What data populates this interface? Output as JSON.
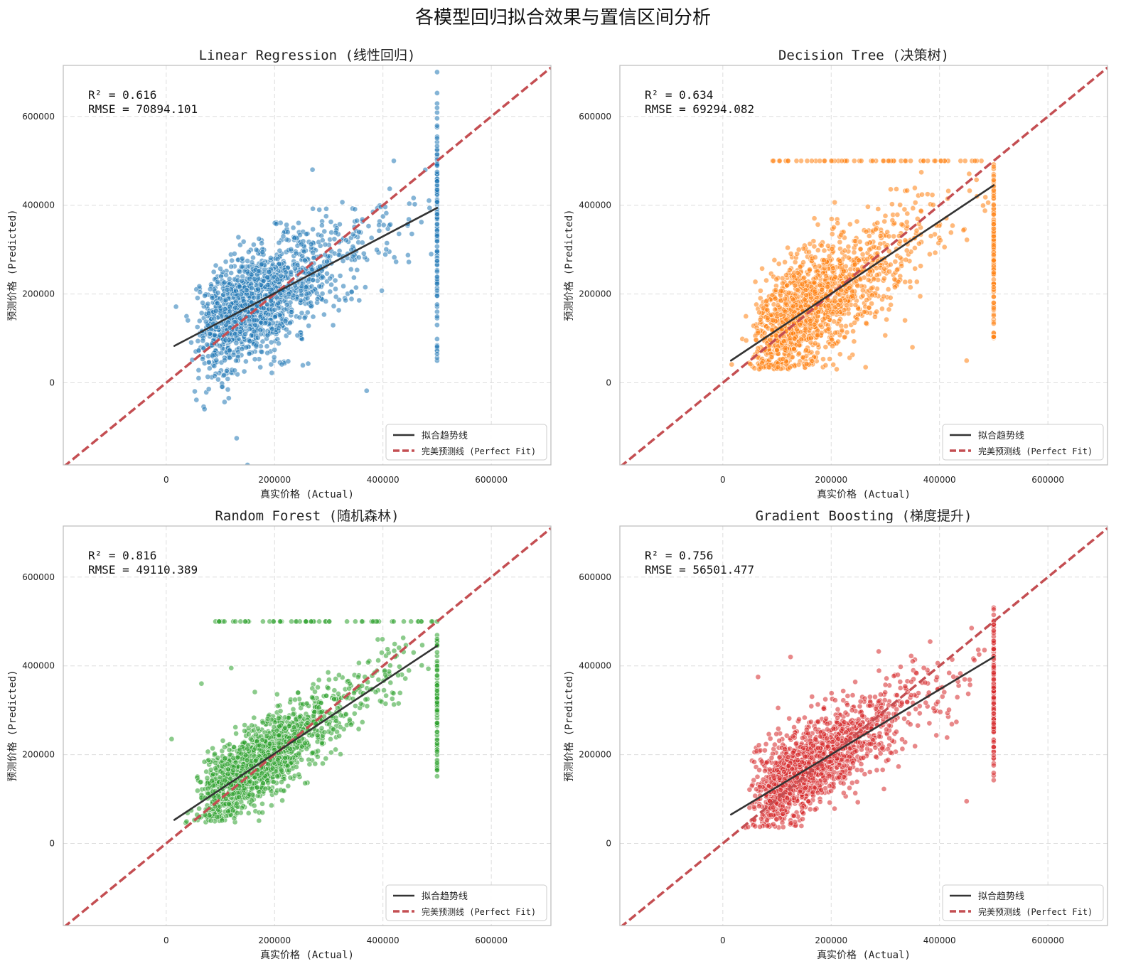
{
  "figure_title": "各模型回归拟合效果与置信区间分析",
  "legend_labels": {
    "trend": "拟合趋势线",
    "perfect": "完美预测线 (Perfect Fit)"
  },
  "colors": {
    "trend": "#333333",
    "perfect": "#c44e52",
    "grid": "#dddddd",
    "frame": "#bbbbbb"
  },
  "chart_data": [
    {
      "type": "scatter",
      "title": "Linear Regression (线性回归)",
      "xlabel": "真实价格 (Actual)",
      "ylabel": "预测价格 (Predicted)",
      "xlim": [
        -190000,
        710000
      ],
      "ylim": [
        -185000,
        715000
      ],
      "xticks": [
        0,
        200000,
        400000,
        600000
      ],
      "yticks": [
        0,
        200000,
        400000,
        600000
      ],
      "tick_labels": [
        "0",
        "200000",
        "400000",
        "600000"
      ],
      "r2_label": "R² = 0.616",
      "rmse_label": "RMSE = 70894.101",
      "r2": 0.616,
      "rmse": 70894.101,
      "color": "#1f77b4",
      "trend": {
        "x": [
          15000,
          500000
        ],
        "y": [
          83000,
          394000
        ]
      },
      "sim": {
        "slope": 0.64,
        "intercept": 73000,
        "sd": 62000,
        "cap_n": 120,
        "cap_lo": 50000,
        "cap_hi": 700000,
        "yfloor": -185000,
        "clip_top": false,
        "ceiling": 0,
        "outliers": [
          [
            130000,
            -125000
          ],
          [
            150000,
            -185000
          ],
          [
            370000,
            -18000
          ],
          [
            420000,
            500000
          ],
          [
            270000,
            480000
          ]
        ]
      }
    },
    {
      "type": "scatter",
      "title": "Decision Tree (决策树)",
      "xlabel": "真实价格 (Actual)",
      "ylabel": "预测价格 (Predicted)",
      "xlim": [
        -190000,
        710000
      ],
      "ylim": [
        -185000,
        715000
      ],
      "xticks": [
        0,
        200000,
        400000,
        600000
      ],
      "yticks": [
        0,
        200000,
        400000,
        600000
      ],
      "tick_labels": [
        "0",
        "200000",
        "400000",
        "600000"
      ],
      "r2_label": "R² = 0.634",
      "rmse_label": "RMSE = 69294.082",
      "r2": 0.634,
      "rmse": 69294.082,
      "color": "#ff7f0e",
      "trend": {
        "x": [
          15000,
          500000
        ],
        "y": [
          50000,
          445000
        ]
      },
      "sim": {
        "slope": 0.81,
        "intercept": 38000,
        "sd": 66000,
        "cap_n": 110,
        "cap_lo": 100000,
        "cap_hi": 500000,
        "yfloor": 30000,
        "clip_top": true,
        "ceiling": 500000,
        "outliers": [
          [
            350000,
            80000
          ],
          [
            450000,
            50000
          ]
        ]
      }
    },
    {
      "type": "scatter",
      "title": "Random Forest (随机森林)",
      "xlabel": "真实价格 (Actual)",
      "ylabel": "预测价格 (Predicted)",
      "xlim": [
        -190000,
        710000
      ],
      "ylim": [
        -185000,
        715000
      ],
      "xticks": [
        0,
        200000,
        400000,
        600000
      ],
      "yticks": [
        0,
        200000,
        400000,
        600000
      ],
      "tick_labels": [
        "0",
        "200000",
        "400000",
        "600000"
      ],
      "r2_label": "R² = 0.816",
      "rmse_label": "RMSE = 49110.389",
      "r2": 0.816,
      "rmse": 49110.389,
      "color": "#2ca02c",
      "trend": {
        "x": [
          15000,
          500000
        ],
        "y": [
          53000,
          445000
        ]
      },
      "sim": {
        "slope": 0.81,
        "intercept": 41000,
        "sd": 43000,
        "cap_n": 90,
        "cap_lo": 150000,
        "cap_hi": 500000,
        "yfloor": 45000,
        "clip_top": true,
        "ceiling": 500000,
        "outliers": [
          [
            10000,
            235000
          ],
          [
            65000,
            360000
          ],
          [
            120000,
            395000
          ]
        ]
      }
    },
    {
      "type": "scatter",
      "title": "Gradient Boosting (梯度提升)",
      "xlabel": "真实价格 (Actual)",
      "ylabel": "预测价格 (Predicted)",
      "xlim": [
        -190000,
        710000
      ],
      "ylim": [
        -185000,
        715000
      ],
      "xticks": [
        0,
        200000,
        400000,
        600000
      ],
      "yticks": [
        0,
        200000,
        400000,
        600000
      ],
      "tick_labels": [
        "0",
        "200000",
        "400000",
        "600000"
      ],
      "r2_label": "R² = 0.756",
      "rmse_label": "RMSE = 56501.477",
      "r2": 0.756,
      "rmse": 56501.477,
      "color": "#d62728",
      "trend": {
        "x": [
          15000,
          500000
        ],
        "y": [
          65000,
          420000
        ]
      },
      "sim": {
        "slope": 0.73,
        "intercept": 54000,
        "sd": 49000,
        "cap_n": 110,
        "cap_lo": 120000,
        "cap_hi": 545000,
        "yfloor": 35000,
        "clip_top": false,
        "ceiling": 0,
        "outliers": [
          [
            65000,
            375000
          ],
          [
            125000,
            420000
          ],
          [
            450000,
            95000
          ]
        ]
      }
    }
  ]
}
